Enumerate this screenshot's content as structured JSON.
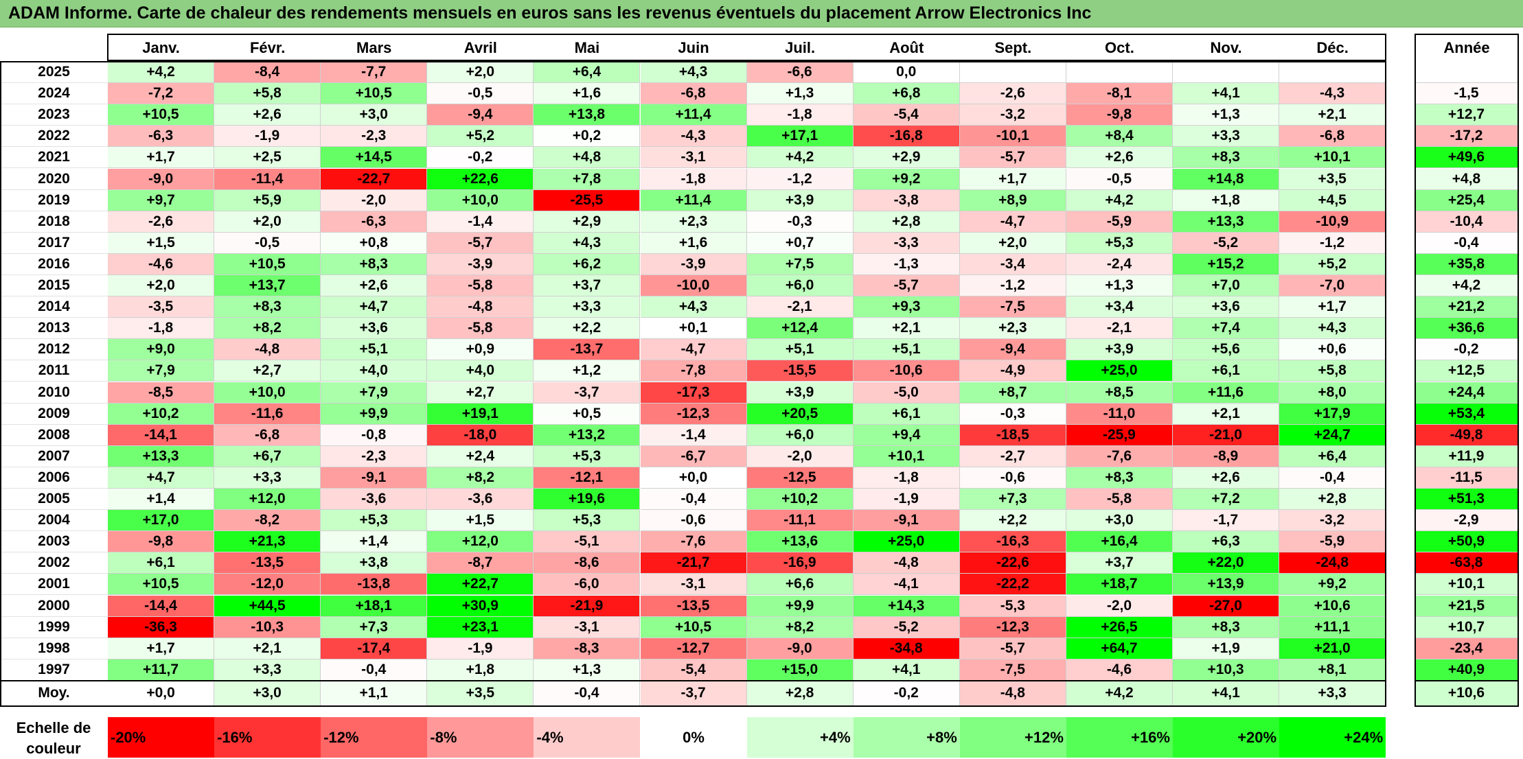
{
  "title": "ADAM Informe. Carte de chaleur des rendements mensuels en euros sans les revenus éventuels du placement Arrow Electronics Inc",
  "chart_data": {
    "type": "heatmap",
    "months": [
      "Janv.",
      "Févr.",
      "Mars",
      "Avril",
      "Mai",
      "Juin",
      "Juil.",
      "Août",
      "Sept.",
      "Oct.",
      "Nov.",
      "Déc."
    ],
    "year_header": "Année",
    "avg_label": "Moy.",
    "rows": [
      {
        "year": "2025",
        "values": [
          "+4,2",
          "-8,4",
          "-7,7",
          "+2,0",
          "+6,4",
          "+4,3",
          "-6,6",
          "0,0",
          "",
          "",
          "",
          ""
        ],
        "annual": ""
      },
      {
        "year": "2024",
        "values": [
          "-7,2",
          "+5,8",
          "+10,5",
          "-0,5",
          "+1,6",
          "-6,8",
          "+1,3",
          "+6,8",
          "-2,6",
          "-8,1",
          "+4,1",
          "-4,3"
        ],
        "annual": "-1,5"
      },
      {
        "year": "2023",
        "values": [
          "+10,5",
          "+2,6",
          "+3,0",
          "-9,4",
          "+13,8",
          "+11,4",
          "-1,8",
          "-5,4",
          "-3,2",
          "-9,8",
          "+1,3",
          "+2,1"
        ],
        "annual": "+12,7"
      },
      {
        "year": "2022",
        "values": [
          "-6,3",
          "-1,9",
          "-2,3",
          "+5,2",
          "+0,2",
          "-4,3",
          "+17,1",
          "-16,8",
          "-10,1",
          "+8,4",
          "+3,3",
          "-6,8"
        ],
        "annual": "-17,2"
      },
      {
        "year": "2021",
        "values": [
          "+1,7",
          "+2,5",
          "+14,5",
          "-0,2",
          "+4,8",
          "-3,1",
          "+4,2",
          "+2,9",
          "-5,7",
          "+2,6",
          "+8,3",
          "+10,1"
        ],
        "annual": "+49,6"
      },
      {
        "year": "2020",
        "values": [
          "-9,0",
          "-11,4",
          "-22,7",
          "+22,6",
          "+7,8",
          "-1,8",
          "-1,2",
          "+9,2",
          "+1,7",
          "-0,5",
          "+14,8",
          "+3,5"
        ],
        "annual": "+4,8"
      },
      {
        "year": "2019",
        "values": [
          "+9,7",
          "+5,9",
          "-2,0",
          "+10,0",
          "-25,5",
          "+11,4",
          "+3,9",
          "-3,8",
          "+8,9",
          "+4,2",
          "+1,8",
          "+4,5"
        ],
        "annual": "+25,4"
      },
      {
        "year": "2018",
        "values": [
          "-2,6",
          "+2,0",
          "-6,3",
          "-1,4",
          "+2,9",
          "+2,3",
          "-0,3",
          "+2,8",
          "-4,7",
          "-5,9",
          "+13,3",
          "-10,9"
        ],
        "annual": "-10,4"
      },
      {
        "year": "2017",
        "values": [
          "+1,5",
          "-0,5",
          "+0,8",
          "-5,7",
          "+4,3",
          "+1,6",
          "+0,7",
          "-3,3",
          "+2,0",
          "+5,3",
          "-5,2",
          "-1,2"
        ],
        "annual": "-0,4"
      },
      {
        "year": "2016",
        "values": [
          "-4,6",
          "+10,5",
          "+8,3",
          "-3,9",
          "+6,2",
          "-3,9",
          "+7,5",
          "-1,3",
          "-3,4",
          "-2,4",
          "+15,2",
          "+5,2"
        ],
        "annual": "+35,8"
      },
      {
        "year": "2015",
        "values": [
          "+2,0",
          "+13,7",
          "+2,6",
          "-5,8",
          "+3,7",
          "-10,0",
          "+6,0",
          "-5,7",
          "-1,2",
          "+1,3",
          "+7,0",
          "-7,0"
        ],
        "annual": "+4,2"
      },
      {
        "year": "2014",
        "values": [
          "-3,5",
          "+8,3",
          "+4,7",
          "-4,8",
          "+3,3",
          "+4,3",
          "-2,1",
          "+9,3",
          "-7,5",
          "+3,4",
          "+3,6",
          "+1,7"
        ],
        "annual": "+21,2"
      },
      {
        "year": "2013",
        "values": [
          "-1,8",
          "+8,2",
          "+3,6",
          "-5,8",
          "+2,2",
          "+0,1",
          "+12,4",
          "+2,1",
          "+2,3",
          "-2,1",
          "+7,4",
          "+4,3"
        ],
        "annual": "+36,6"
      },
      {
        "year": "2012",
        "values": [
          "+9,0",
          "-4,8",
          "+5,1",
          "+0,9",
          "-13,7",
          "-4,7",
          "+5,1",
          "+5,1",
          "-9,4",
          "+3,9",
          "+5,6",
          "+0,6"
        ],
        "annual": "-0,2"
      },
      {
        "year": "2011",
        "values": [
          "+7,9",
          "+2,7",
          "+4,0",
          "+4,0",
          "+1,2",
          "-7,8",
          "-15,5",
          "-10,6",
          "-4,9",
          "+25,0",
          "+6,1",
          "+5,8"
        ],
        "annual": "+12,5"
      },
      {
        "year": "2010",
        "values": [
          "-8,5",
          "+10,0",
          "+7,9",
          "+2,7",
          "-3,7",
          "-17,3",
          "+3,9",
          "-5,0",
          "+8,7",
          "+8,5",
          "+11,6",
          "+8,0"
        ],
        "annual": "+24,4"
      },
      {
        "year": "2009",
        "values": [
          "+10,2",
          "-11,6",
          "+9,9",
          "+19,1",
          "+0,5",
          "-12,3",
          "+20,5",
          "+6,1",
          "-0,3",
          "-11,0",
          "+2,1",
          "+17,9"
        ],
        "annual": "+53,4"
      },
      {
        "year": "2008",
        "values": [
          "-14,1",
          "-6,8",
          "-0,8",
          "-18,0",
          "+13,2",
          "-1,4",
          "+6,0",
          "+9,4",
          "-18,5",
          "-25,9",
          "-21,0",
          "+24,7"
        ],
        "annual": "-49,8"
      },
      {
        "year": "2007",
        "values": [
          "+13,3",
          "+6,7",
          "-2,3",
          "+2,4",
          "+5,3",
          "-6,7",
          "-2,0",
          "+10,1",
          "-2,7",
          "-7,6",
          "-8,9",
          "+6,4"
        ],
        "annual": "+11,9"
      },
      {
        "year": "2006",
        "values": [
          "+4,7",
          "+3,3",
          "-9,1",
          "+8,2",
          "-12,1",
          "+0,0",
          "-12,5",
          "-1,8",
          "-0,6",
          "+8,3",
          "+2,6",
          "-0,4"
        ],
        "annual": "-11,5"
      },
      {
        "year": "2005",
        "values": [
          "+1,4",
          "+12,0",
          "-3,6",
          "-3,6",
          "+19,6",
          "-0,4",
          "+10,2",
          "-1,9",
          "+7,3",
          "-5,8",
          "+7,2",
          "+2,8"
        ],
        "annual": "+51,3"
      },
      {
        "year": "2004",
        "values": [
          "+17,0",
          "-8,2",
          "+5,3",
          "+1,5",
          "+5,3",
          "-0,6",
          "-11,1",
          "-9,1",
          "+2,2",
          "+3,0",
          "-1,7",
          "-3,2"
        ],
        "annual": "-2,9"
      },
      {
        "year": "2003",
        "values": [
          "-9,8",
          "+21,3",
          "+1,4",
          "+12,0",
          "-5,1",
          "-7,6",
          "+13,6",
          "+25,0",
          "-16,3",
          "+16,4",
          "+6,3",
          "-5,9"
        ],
        "annual": "+50,9"
      },
      {
        "year": "2002",
        "values": [
          "+6,1",
          "-13,5",
          "+3,8",
          "-8,7",
          "-8,6",
          "-21,7",
          "-16,9",
          "-4,8",
          "-22,6",
          "+3,7",
          "+22,0",
          "-24,8"
        ],
        "annual": "-63,8"
      },
      {
        "year": "2001",
        "values": [
          "+10,5",
          "-12,0",
          "-13,8",
          "+22,7",
          "-6,0",
          "-3,1",
          "+6,6",
          "-4,1",
          "-22,2",
          "+18,7",
          "+13,9",
          "+9,2"
        ],
        "annual": "+10,1"
      },
      {
        "year": "2000",
        "values": [
          "-14,4",
          "+44,5",
          "+18,1",
          "+30,9",
          "-21,9",
          "-13,5",
          "+9,9",
          "+14,3",
          "-5,3",
          "-2,0",
          "-27,0",
          "+10,6"
        ],
        "annual": "+21,5"
      },
      {
        "year": "1999",
        "values": [
          "-36,3",
          "-10,3",
          "+7,3",
          "+23,1",
          "-3,1",
          "+10,5",
          "+8,2",
          "-5,2",
          "-12,3",
          "+26,5",
          "+8,3",
          "+11,1"
        ],
        "annual": "+10,7"
      },
      {
        "year": "1998",
        "values": [
          "+1,7",
          "+2,1",
          "-17,4",
          "-1,9",
          "-8,3",
          "-12,7",
          "-9,0",
          "-34,8",
          "-5,7",
          "+64,7",
          "+1,9",
          "+21,0"
        ],
        "annual": "-23,4"
      },
      {
        "year": "1997",
        "values": [
          "+11,7",
          "+3,3",
          "-0,4",
          "+1,8",
          "+1,3",
          "-5,4",
          "+15,0",
          "+4,1",
          "-7,5",
          "-4,6",
          "+10,3",
          "+8,1"
        ],
        "annual": "+40,9"
      }
    ],
    "averages": [
      "+0,0",
      "+3,0",
      "+1,1",
      "+3,5",
      "-0,4",
      "-3,7",
      "+2,8",
      "-0,2",
      "-4,8",
      "+4,2",
      "+4,1",
      "+3,3"
    ],
    "annual_average": "+10,6",
    "scale_label": "Echelle de couleur",
    "scale": [
      {
        "label": "-20%",
        "value": -20
      },
      {
        "label": "-16%",
        "value": -16
      },
      {
        "label": "-12%",
        "value": -12
      },
      {
        "label": "-8%",
        "value": -8
      },
      {
        "label": "-4%",
        "value": -4
      },
      {
        "label": "0%",
        "value": 0
      },
      {
        "label": "+4%",
        "value": 4
      },
      {
        "label": "+8%",
        "value": 8
      },
      {
        "label": "+12%",
        "value": 12
      },
      {
        "label": "+16%",
        "value": 16
      },
      {
        "label": "+20%",
        "value": 20
      },
      {
        "label": "+24%",
        "value": 24
      }
    ],
    "colors": {
      "negative_max": "#ff0000",
      "neutral": "#ffffff",
      "positive_max": "#00ff00",
      "title_bar": "#8fcf84"
    }
  }
}
